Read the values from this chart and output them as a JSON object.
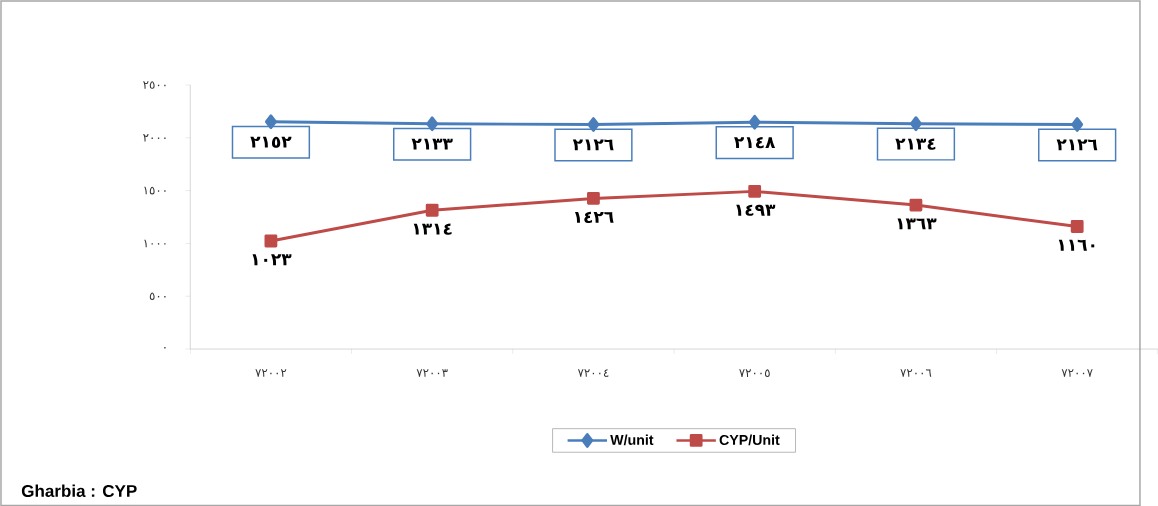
{
  "chart_data": {
    "type": "line",
    "categories": [
      "٧٢٠٠٢",
      "٧٢٠٠٣",
      "٧٢٠٠٤",
      "٧٢٠٠٥",
      "٧٢٠٠٦",
      "٧٢٠٠٧"
    ],
    "series": [
      {
        "name": "W/unit",
        "color": "#4a7ebb",
        "marker": "diamond",
        "values": [
          2152,
          2133,
          2126,
          2148,
          2134,
          2126
        ],
        "value_labels": [
          "٢١٥٢",
          "٢١٣٣",
          "٢١٢٦",
          "٢١٤٨",
          "٢١٣٤",
          "٢١٢٦"
        ]
      },
      {
        "name": "CYP/Unit",
        "color": "#be4b48",
        "marker": "square",
        "values": [
          1023,
          1314,
          1426,
          1493,
          1363,
          1160
        ],
        "value_labels": [
          "١٠٢٣",
          "١٣١٤",
          "١٤٢٦",
          "١٤٩٣",
          "١٣٦٣",
          "١١٦٠"
        ]
      }
    ],
    "ylim": [
      0,
      2500
    ],
    "yticks": [
      {
        "value": 0,
        "label": "٠"
      },
      {
        "value": 500,
        "label": "٥٠٠"
      },
      {
        "value": 1000,
        "label": "١٠٠٠"
      },
      {
        "value": 1500,
        "label": "١٥٠٠"
      },
      {
        "value": 2000,
        "label": "٢٠٠٠"
      },
      {
        "value": 2500,
        "label": "٢٥٠٠"
      }
    ],
    "legend": "bottom",
    "grid": false,
    "annotations": [
      "Gharbia : CYP"
    ]
  }
}
